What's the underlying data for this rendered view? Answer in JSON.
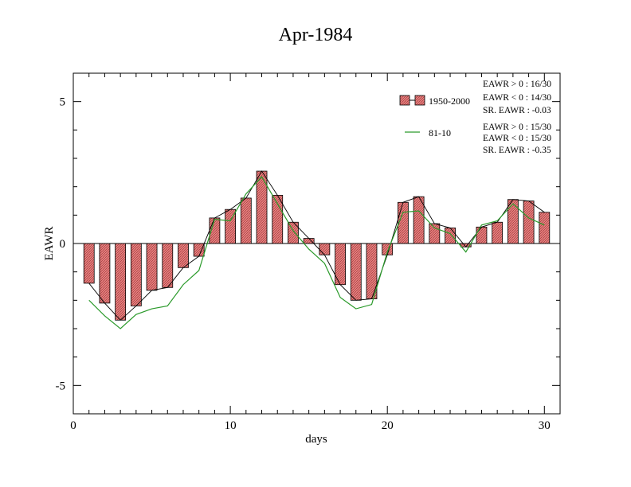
{
  "chart_data": {
    "type": "bar",
    "title": "Apr-1984",
    "xlabel": "days",
    "ylabel": "EAWR",
    "xlim": [
      0,
      31
    ],
    "ylim": [
      -6,
      6
    ],
    "xticks": [
      0,
      10,
      20,
      30
    ],
    "yticks": [
      -5,
      0,
      5
    ],
    "grid": false,
    "legend_position": "top-right",
    "x": [
      1,
      2,
      3,
      4,
      5,
      6,
      7,
      8,
      9,
      10,
      11,
      12,
      13,
      14,
      15,
      16,
      17,
      18,
      19,
      20,
      21,
      22,
      23,
      24,
      25,
      26,
      27,
      28,
      29,
      30
    ],
    "series": [
      {
        "name": "1950-2000",
        "kind": "bar",
        "fill_color": "#e06060",
        "values": [
          -1.4,
          -2.1,
          -2.7,
          -2.2,
          -1.65,
          -1.55,
          -0.85,
          -0.45,
          0.9,
          1.2,
          1.6,
          2.55,
          1.7,
          0.75,
          0.18,
          -0.4,
          -1.45,
          -2.0,
          -1.95,
          -0.4,
          1.45,
          1.65,
          0.7,
          0.55,
          -0.12,
          0.58,
          0.75,
          1.55,
          1.5,
          1.1
        ]
      },
      {
        "name": "81-10",
        "kind": "line",
        "color": "#2a9a2a",
        "values": [
          -2.0,
          -2.55,
          -3.0,
          -2.5,
          -2.3,
          -2.2,
          -1.45,
          -0.95,
          0.85,
          0.8,
          1.75,
          2.35,
          1.4,
          0.45,
          -0.2,
          -0.7,
          -1.9,
          -2.3,
          -2.15,
          -0.3,
          1.1,
          1.15,
          0.55,
          0.35,
          -0.3,
          0.65,
          0.8,
          1.4,
          0.9,
          0.65
        ]
      }
    ],
    "stats": [
      {
        "lines": [
          "EAWR > 0 : 16/30",
          "EAWR < 0 : 14/30",
          "SR. EAWR : -0.03"
        ]
      },
      {
        "lines": [
          "EAWR > 0 : 15/30",
          "EAWR < 0 : 15/30",
          "SR. EAWR : -0.35"
        ]
      }
    ]
  }
}
